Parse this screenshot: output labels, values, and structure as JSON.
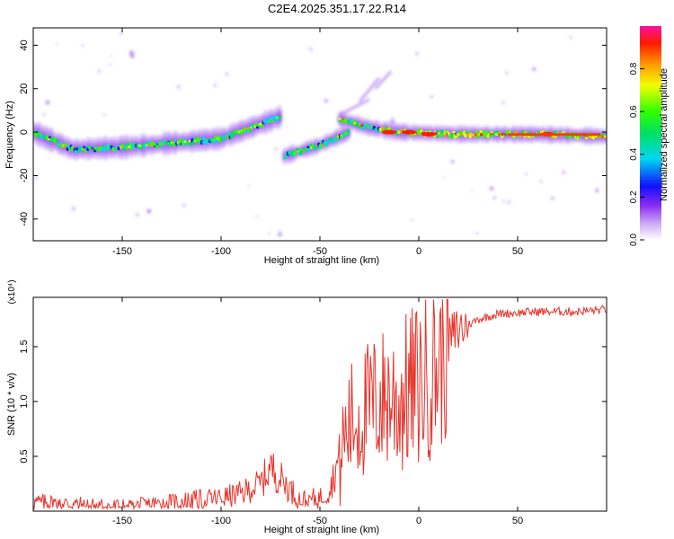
{
  "title": "C2E4.2025.351.17.22.R14",
  "chart_data": [
    {
      "type": "heatmap",
      "xlabel": "Height of straight line (km)",
      "ylabel": "Frequency (Hz)",
      "xlim": [
        -195,
        95
      ],
      "ylim": [
        -50,
        48
      ],
      "xticks": [
        -150,
        -100,
        -50,
        0,
        50
      ],
      "yticks": [
        -40,
        -20,
        0,
        20,
        40
      ],
      "colorbar": {
        "label": "Normalized spectral amplitude",
        "range": [
          0,
          1
        ],
        "ticks": [
          "0.0",
          "0.2",
          "0.4",
          "0.6",
          "0.8"
        ]
      },
      "ridges": [
        {
          "x": [
            -195,
            -175,
            -150,
            -125,
            -100,
            -85,
            -70
          ],
          "y": [
            0,
            -8,
            -7,
            -5,
            -3,
            2,
            7
          ]
        },
        {
          "x": [
            -68,
            -50,
            -35
          ],
          "y": [
            -11,
            -6,
            0
          ]
        },
        {
          "x": [
            -40,
            -25,
            -10,
            20,
            60,
            95
          ],
          "y": [
            6,
            2,
            0,
            -1,
            -1,
            -2
          ]
        }
      ],
      "hot_spots": [
        {
          "x": -15,
          "y": 0
        },
        {
          "x": -5,
          "y": 0
        },
        {
          "x": 5,
          "y": -1
        },
        {
          "x": 65,
          "y": -1
        }
      ]
    },
    {
      "type": "line",
      "xlabel": "Height of straight line (km)",
      "ylabel": "SNR (10 * v/v)",
      "multiplier": "(x10⁴)",
      "xlim": [
        -195,
        95
      ],
      "ylim": [
        0,
        1.95
      ],
      "xticks": [
        -150,
        -100,
        -50,
        0,
        50
      ],
      "yticks": [
        "0.5",
        "1.0",
        "1.5"
      ],
      "series": [
        {
          "name": "SNR",
          "color": "#e8332b",
          "x": [
            -195,
            -180,
            -160,
            -140,
            -120,
            -100,
            -90,
            -80,
            -75,
            -70,
            -60,
            -50,
            -45,
            -40,
            -35,
            -30,
            -25,
            -20,
            -15,
            -10,
            -5,
            0,
            5,
            10,
            15,
            20,
            30,
            40,
            60,
            80,
            95
          ],
          "y": [
            0.08,
            0.07,
            0.04,
            0.05,
            0.09,
            0.12,
            0.16,
            0.25,
            0.4,
            0.3,
            0.1,
            0.12,
            0.2,
            0.5,
            0.8,
            0.85,
            0.95,
            1.0,
            1.05,
            1.0,
            1.1,
            1.15,
            1.25,
            1.35,
            1.55,
            1.65,
            1.75,
            1.8,
            1.82,
            1.82,
            1.84
          ]
        }
      ]
    }
  ]
}
